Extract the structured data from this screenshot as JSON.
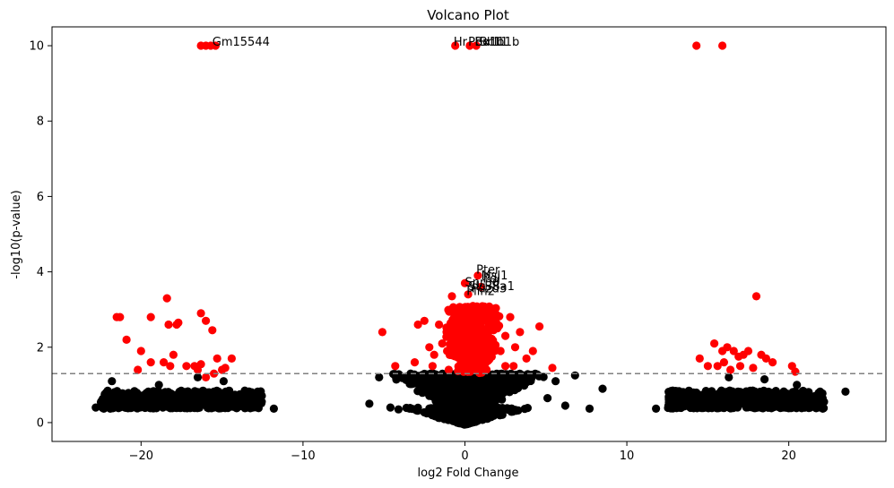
{
  "chart_data": {
    "type": "scatter",
    "title": "Volcano Plot",
    "xlabel": "log2 Fold Change",
    "ylabel": "-log10(p-value)",
    "xlim": [
      -25.5,
      26
    ],
    "ylim": [
      -0.5,
      10.5
    ],
    "xticks": [
      -20,
      -10,
      0,
      10,
      20
    ],
    "yticks": [
      0,
      2,
      4,
      6,
      8,
      10
    ],
    "threshold_line": {
      "y": 1.3,
      "style": "dashed",
      "color": "#808080"
    },
    "colors": {
      "significant": "#ff0000",
      "nonsignificant": "#000000"
    },
    "series": [
      {
        "color": "#ff0000",
        "points": [
          [
            -16.3,
            10.0
          ],
          [
            -16.0,
            10.0
          ],
          [
            -15.7,
            10.0
          ],
          [
            -15.4,
            10.0
          ],
          [
            -0.6,
            10.0
          ],
          [
            0.3,
            10.0
          ],
          [
            0.7,
            10.0
          ],
          [
            14.3,
            10.0
          ],
          [
            15.9,
            10.0
          ],
          [
            -21.5,
            2.8
          ],
          [
            -21.3,
            2.8
          ],
          [
            -20.9,
            2.2
          ],
          [
            -20.2,
            1.4
          ],
          [
            -20.0,
            1.9
          ],
          [
            -19.4,
            1.6
          ],
          [
            -19.4,
            2.8
          ],
          [
            -18.6,
            1.6
          ],
          [
            -18.4,
            3.3
          ],
          [
            -18.3,
            2.6
          ],
          [
            -18.2,
            1.5
          ],
          [
            -18.0,
            1.8
          ],
          [
            -17.8,
            2.6
          ],
          [
            -17.7,
            2.65
          ],
          [
            -16.7,
            1.5
          ],
          [
            -16.5,
            1.4
          ],
          [
            -16.3,
            1.55
          ],
          [
            -16.3,
            2.9
          ],
          [
            -16.0,
            2.7
          ],
          [
            -15.6,
            2.45
          ],
          [
            -15.5,
            1.3
          ],
          [
            -15.3,
            1.7
          ],
          [
            -15.0,
            1.4
          ],
          [
            -14.8,
            1.45
          ],
          [
            -14.4,
            1.7
          ],
          [
            -17.2,
            1.5
          ],
          [
            -16.0,
            1.2
          ],
          [
            -5.1,
            2.4
          ],
          [
            -4.3,
            1.5
          ],
          [
            -3.1,
            1.6
          ],
          [
            -2.9,
            2.6
          ],
          [
            -2.5,
            2.7
          ],
          [
            -2.2,
            2.0
          ],
          [
            -1.9,
            1.8
          ],
          [
            -1.6,
            2.6
          ],
          [
            -1.4,
            2.1
          ],
          [
            -1.1,
            1.9
          ],
          [
            -0.8,
            3.35
          ],
          [
            -0.5,
            2.8
          ],
          [
            -0.3,
            2.2
          ],
          [
            0.0,
            3.7
          ],
          [
            0.2,
            3.4
          ],
          [
            0.4,
            2.9
          ],
          [
            0.6,
            2.3
          ],
          [
            0.8,
            3.9
          ],
          [
            1.0,
            3.6
          ],
          [
            1.2,
            2.7
          ],
          [
            1.4,
            2.2
          ],
          [
            1.7,
            2.8
          ],
          [
            2.0,
            2.5
          ],
          [
            2.2,
            1.9
          ],
          [
            2.5,
            2.3
          ],
          [
            2.8,
            2.8
          ],
          [
            3.1,
            2.0
          ],
          [
            3.4,
            2.4
          ],
          [
            3.8,
            1.7
          ],
          [
            4.2,
            1.9
          ],
          [
            4.6,
            2.55
          ],
          [
            5.4,
            1.45
          ],
          [
            1.5,
            3.0
          ],
          [
            -2.0,
            1.5
          ],
          [
            2.5,
            1.5
          ],
          [
            0.5,
            2.5
          ],
          [
            -1.0,
            1.4
          ],
          [
            1.0,
            1.6
          ],
          [
            3.0,
            1.5
          ],
          [
            14.5,
            1.7
          ],
          [
            15.0,
            1.5
          ],
          [
            15.4,
            2.1
          ],
          [
            15.6,
            1.5
          ],
          [
            15.9,
            1.9
          ],
          [
            16.2,
            2.0
          ],
          [
            16.4,
            1.4
          ],
          [
            16.6,
            1.9
          ],
          [
            16.9,
            1.75
          ],
          [
            17.2,
            1.8
          ],
          [
            17.5,
            1.9
          ],
          [
            17.8,
            1.45
          ],
          [
            18.0,
            3.35
          ],
          [
            18.3,
            1.8
          ],
          [
            18.6,
            1.7
          ],
          [
            20.2,
            1.5
          ],
          [
            20.4,
            1.35
          ],
          [
            17.0,
            1.5
          ],
          [
            19.0,
            1.6
          ],
          [
            16.0,
            1.6
          ]
        ]
      },
      {
        "color": "#000000",
        "points": [
          [
            -21.8,
            1.1
          ],
          [
            -18.9,
            1.0
          ],
          [
            -16.5,
            1.2
          ],
          [
            -14.9,
            1.1
          ],
          [
            -13.9,
            0.75
          ],
          [
            -12.9,
            0.75
          ],
          [
            -11.8,
            0.37
          ],
          [
            -22.8,
            0.4
          ],
          [
            -22.3,
            0.37
          ],
          [
            -21.9,
            0.37
          ],
          [
            -5.9,
            0.5
          ],
          [
            -5.3,
            1.2
          ],
          [
            -4.6,
            0.4
          ],
          [
            -4.1,
            0.35
          ],
          [
            5.1,
            0.65
          ],
          [
            6.2,
            0.45
          ],
          [
            6.8,
            1.25
          ],
          [
            7.7,
            0.37
          ],
          [
            8.5,
            0.9
          ],
          [
            5.6,
            1.1
          ],
          [
            11.8,
            0.37
          ],
          [
            12.8,
            0.7
          ],
          [
            13.2,
            0.5
          ],
          [
            21.2,
            0.6
          ],
          [
            21.6,
            0.7
          ],
          [
            22.1,
            0.37
          ],
          [
            23.5,
            0.82
          ],
          [
            20.5,
            1.0
          ],
          [
            18.5,
            1.15
          ],
          [
            16.3,
            1.2
          ]
        ]
      }
    ],
    "clouds": [
      {
        "xmin": -22.5,
        "xmax": -12.5,
        "ymin": 0.38,
        "ymax": 0.85,
        "count": 520
      },
      {
        "xmin": -5.2,
        "xmax": 5.4,
        "ymin": 0.35,
        "ymax": 1.3,
        "count": 1100,
        "funnel": true
      },
      {
        "xmin": 12.5,
        "xmax": 22.2,
        "ymin": 0.38,
        "ymax": 0.85,
        "count": 520
      }
    ],
    "red_clouds": [
      {
        "xmin": -3.5,
        "xmax": 4.5,
        "ymin": 1.3,
        "ymax": 3.1,
        "count": 520,
        "funnel": true
      }
    ],
    "annotations": [
      {
        "text": "Gm15544",
        "x": -15.6,
        "y": 10.0
      },
      {
        "text": "Hr",
        "x": -0.7,
        "y": 10.0
      },
      {
        "text": "Pbx1b",
        "x": 0.2,
        "y": 10.0
      },
      {
        "text": "Bdl11",
        "x": 0.6,
        "y": 10.0
      },
      {
        "text": "Bcl11b",
        "x": 0.9,
        "y": 10.0
      },
      {
        "text": "Pter",
        "x": 0.7,
        "y": 3.95
      },
      {
        "text": "Msl1",
        "x": 1.0,
        "y": 3.8
      },
      {
        "text": "Pdl",
        "x": 1.1,
        "y": 3.72
      },
      {
        "text": "Snrpd",
        "x": 0.0,
        "y": 3.62
      },
      {
        "text": "Slc38a1",
        "x": 0.2,
        "y": 3.52
      },
      {
        "text": "Pdzd3",
        "x": 0.4,
        "y": 3.45
      },
      {
        "text": "Plin2",
        "x": 0.1,
        "y": 3.38
      }
    ]
  }
}
